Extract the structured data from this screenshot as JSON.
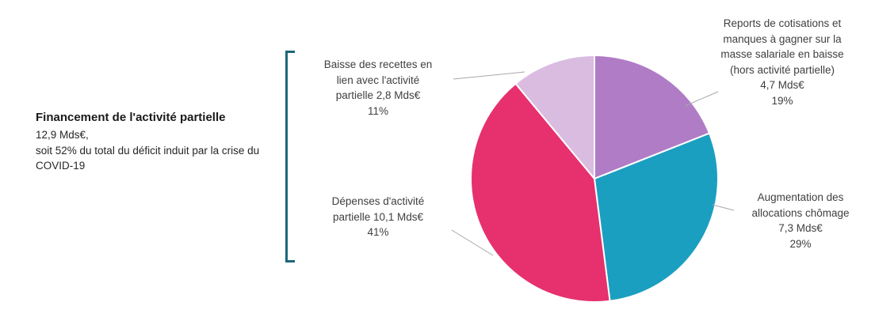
{
  "summary": {
    "title": "Financement de l'activité partielle",
    "body": "12,9 Mds€,\nsoit 52% du total du déficit induit par la crise du COVID-19"
  },
  "callouts": {
    "baisse": {
      "text": "Baisse des recettes en\nlien avec l'activité\npartielle 2,8 Mds€\n11%"
    },
    "reports": {
      "text": "Reports de cotisations et\nmanques à gagner sur la\nmasse salariale en baisse\n(hors activité partielle)\n4,7 Mds€\n19%"
    },
    "augmentation": {
      "text": "Augmentation des\nallocations chômage\n7,3 Mds€\n29%"
    },
    "depenses": {
      "text": "Dépenses d'activité\npartielle 10,1 Mds€\n41%"
    }
  },
  "chart_data": {
    "type": "pie",
    "title": "Financement de l'activité partielle",
    "unit": "Mds€",
    "start_angle_deg": 0,
    "direction": "clockwise",
    "legend_position": "none",
    "slices": [
      {
        "id": "reports-cotisations",
        "label": "Reports de cotisations et manques à gagner sur la masse salariale en baisse (hors activité partielle)",
        "value": 4.7,
        "percent": 19,
        "color": "#B07CC6"
      },
      {
        "id": "allocations-chomage",
        "label": "Augmentation des allocations chômage",
        "value": 7.3,
        "percent": 29,
        "color": "#1B9FC0"
      },
      {
        "id": "depenses-activite-partielle",
        "label": "Dépenses d'activité partielle",
        "value": 10.1,
        "percent": 41,
        "color": "#E6316E"
      },
      {
        "id": "baisse-recettes",
        "label": "Baisse des recettes en lien avec l'activité partielle",
        "value": 2.8,
        "percent": 11,
        "color": "#D9BCE0"
      }
    ],
    "accent_colors": {
      "bracket": "#1B6778",
      "leader_line": "#A8A8A8",
      "slice_separator": "#FFFFFF"
    }
  }
}
